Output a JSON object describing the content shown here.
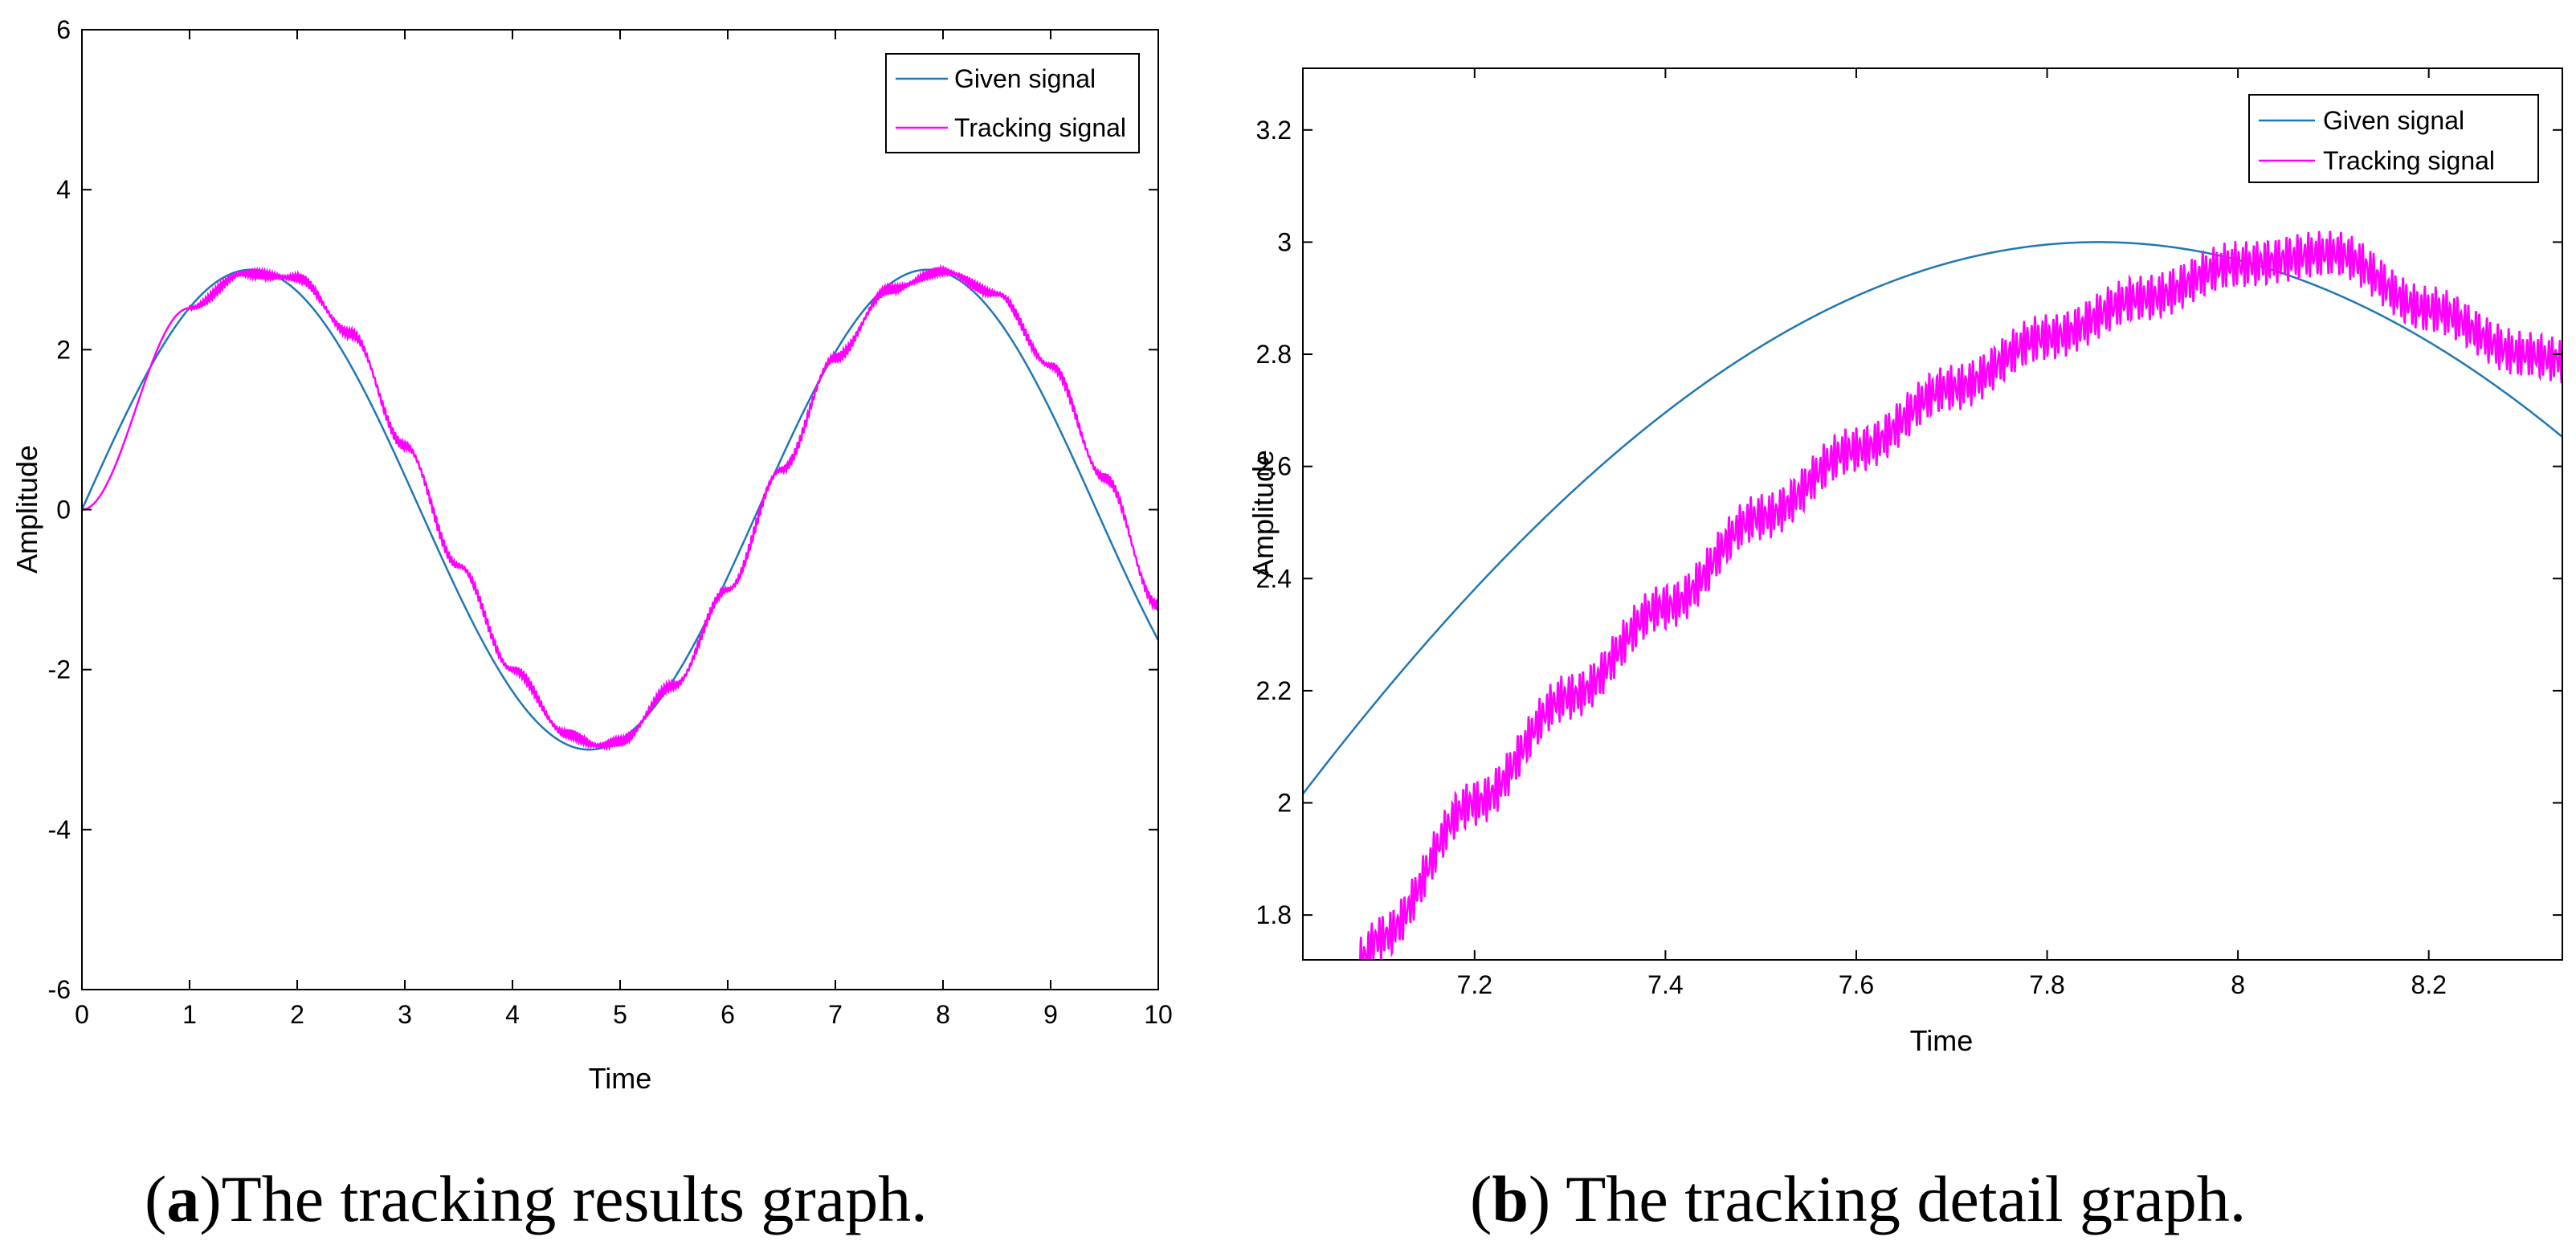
{
  "chart_data": [
    {
      "id": "a",
      "type": "line",
      "xlabel": "Time",
      "ylabel": "Amplitude",
      "xlim": [
        0,
        10
      ],
      "ylim": [
        -6,
        6
      ],
      "xticks": [
        "0",
        "1",
        "2",
        "3",
        "4",
        "5",
        "6",
        "7",
        "8",
        "9",
        "10"
      ],
      "yticks": [
        "-6",
        "-4",
        "-2",
        "0",
        "2",
        "4",
        "6"
      ],
      "legend": [
        "Given signal",
        "Tracking signal"
      ],
      "legend_position": "top-right",
      "series": [
        {
          "name": "Given signal",
          "color": "#1f77b4",
          "formula": "3*sin(t)",
          "x_range": [
            0,
            10
          ]
        },
        {
          "name": "Tracking signal",
          "color": "#ff00ff",
          "x": [
            0,
            1.0,
            1.5,
            2.0,
            2.5,
            3.0,
            3.5,
            4.0,
            4.5,
            4.8,
            5.0,
            5.5,
            6.0,
            6.5,
            7.0,
            7.5,
            8.0,
            8.5,
            9.0,
            9.5,
            10.0
          ],
          "values": [
            0,
            2.52,
            2.95,
            2.9,
            2.2,
            0.8,
            -0.7,
            -2.0,
            -2.8,
            -2.95,
            -2.9,
            -2.2,
            -1.0,
            0.5,
            1.9,
            2.75,
            2.98,
            2.7,
            1.8,
            0.4,
            -1.2
          ]
        }
      ]
    },
    {
      "id": "b",
      "type": "line",
      "xlabel": "Time",
      "ylabel": "Amplitude",
      "xlim": [
        7.02,
        8.34
      ],
      "ylim": [
        1.72,
        3.31
      ],
      "xticks": [
        "7.2",
        "7.4",
        "7.6",
        "7.8",
        "8",
        "8.2"
      ],
      "yticks": [
        "1.8",
        "2",
        "2.2",
        "2.4",
        "2.6",
        "2.8",
        "3",
        "3.2"
      ],
      "legend": [
        "Given signal",
        "Tracking signal"
      ],
      "legend_position": "top-right",
      "series": [
        {
          "name": "Given signal",
          "color": "#1f77b4",
          "formula": "3*sin(t)",
          "x_range": [
            7.02,
            8.34
          ]
        },
        {
          "name": "Tracking signal",
          "color": "#ff00ff",
          "x": [
            7.08,
            7.1,
            7.2,
            7.3,
            7.4,
            7.5,
            7.6,
            7.7,
            7.8,
            7.9,
            8.0,
            8.1,
            8.2,
            8.3,
            8.34
          ],
          "values": [
            1.72,
            1.76,
            2.0,
            2.19,
            2.35,
            2.51,
            2.63,
            2.74,
            2.83,
            2.9,
            2.96,
            2.98,
            2.88,
            2.8,
            2.79
          ]
        }
      ]
    }
  ],
  "captions": {
    "a": {
      "letter": "a",
      "text": "The tracking results graph.",
      "open": "(",
      "close": ")"
    },
    "b": {
      "letter": "b",
      "text": " The tracking detail graph.",
      "open": "(",
      "close": ")"
    }
  }
}
